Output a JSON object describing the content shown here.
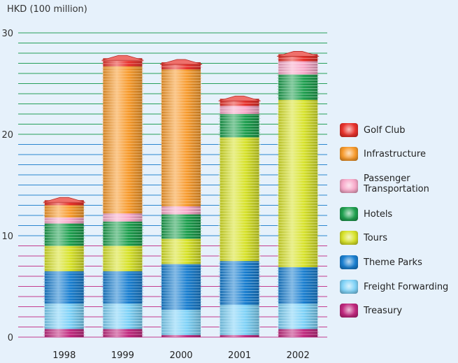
{
  "chart_data": {
    "type": "bar",
    "stacked": true,
    "ylabel": "HKD (100 million)",
    "ylim": [
      0,
      30
    ],
    "yticks": [
      0,
      10,
      20,
      30
    ],
    "grid": true,
    "legend_position": "right",
    "categories": [
      "1998",
      "1999",
      "2000",
      "2001",
      "2002"
    ],
    "series": [
      {
        "name": "Treasury",
        "color": "#c0287e",
        "values": [
          0.8,
          0.8,
          0.2,
          0.2,
          0.8
        ]
      },
      {
        "name": "Freight Forwarding",
        "color": "#7fd2f7",
        "values": [
          2.5,
          2.5,
          2.5,
          3.0,
          2.5
        ]
      },
      {
        "name": "Theme Parks",
        "color": "#1a7fd0",
        "values": [
          3.2,
          3.2,
          4.5,
          4.3,
          3.6
        ]
      },
      {
        "name": "Tours",
        "color": "#d7e22a",
        "values": [
          2.5,
          2.5,
          2.5,
          12.2,
          16.5
        ]
      },
      {
        "name": "Hotels",
        "color": "#20a050",
        "values": [
          2.2,
          2.4,
          2.4,
          2.3,
          2.5
        ]
      },
      {
        "name": "Passenger Transportation",
        "color": "#f7a9c9",
        "values": [
          0.6,
          0.8,
          0.8,
          0.8,
          1.3
        ]
      },
      {
        "name": "Infrastructure",
        "color": "#f79a2c",
        "values": [
          1.2,
          14.5,
          13.5,
          0.0,
          0.0
        ]
      },
      {
        "name": "Golf Club",
        "color": "#e8322c",
        "values": [
          0.5,
          0.8,
          0.7,
          0.7,
          0.7
        ]
      }
    ]
  }
}
